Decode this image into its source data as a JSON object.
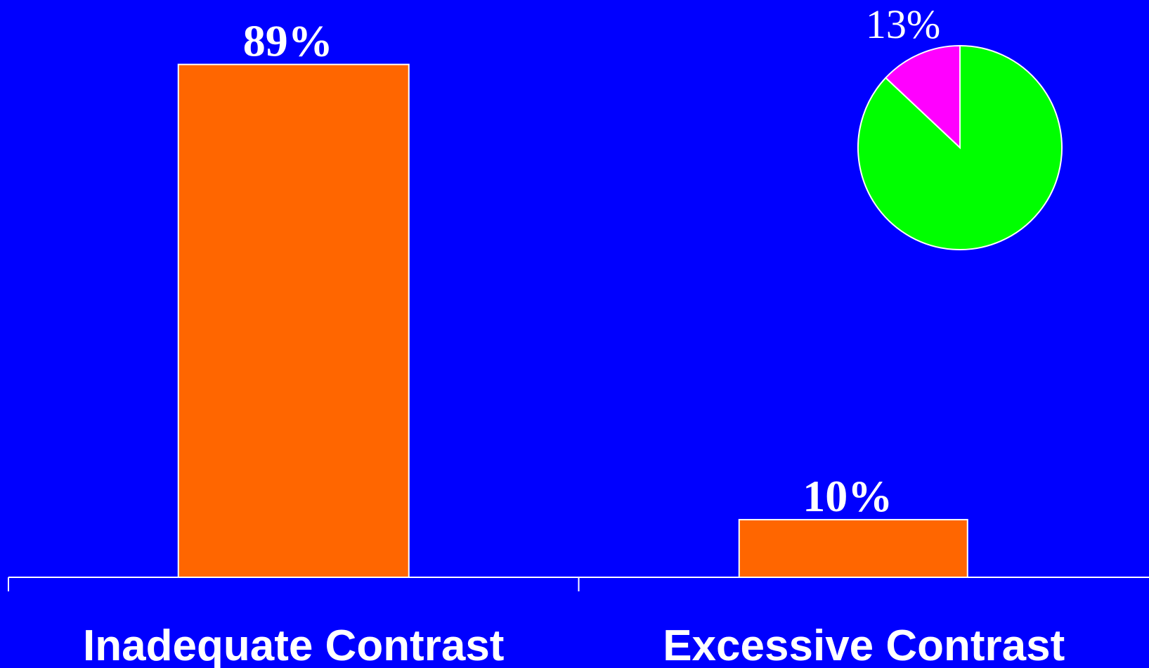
{
  "chart_data": [
    {
      "type": "bar",
      "categories": [
        "Inadequate Contrast",
        "Excessive Contrast"
      ],
      "values": [
        89,
        10
      ],
      "value_labels": [
        "89%",
        "10%"
      ],
      "ylim": [
        0,
        100
      ],
      "grid": false,
      "colors": {
        "background": "#0000ff",
        "bar": "#ff6600",
        "outline": "#ffffff",
        "text": "#ffffff"
      }
    },
    {
      "type": "pie",
      "values": [
        13,
        87
      ],
      "value_labels": [
        "13%"
      ],
      "colors": [
        "#ff00ff",
        "#00ff00"
      ]
    }
  ]
}
